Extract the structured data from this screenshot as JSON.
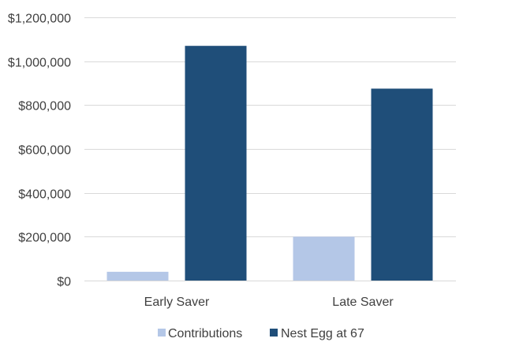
{
  "chart_data": {
    "type": "bar",
    "categories": [
      "Early Saver",
      "Late Saver"
    ],
    "series": [
      {
        "name": "Contributions",
        "values": [
          40000,
          200000
        ],
        "color": "#B4C7E7"
      },
      {
        "name": "Nest Egg at 67",
        "values": [
          1070000,
          875000
        ],
        "color": "#1F4E79"
      }
    ],
    "ylim": [
      0,
      1200000
    ],
    "y_ticks": [
      "$0",
      "$200,000",
      "$400,000",
      "$600,000",
      "$800,000",
      "$1,000,000",
      "$1,200,000"
    ],
    "y_tick_values": [
      0,
      200000,
      400000,
      600000,
      800000,
      1000000,
      1200000
    ],
    "grid": true,
    "gridline_color": "#D9D9D9",
    "legend_position": "bottom"
  }
}
